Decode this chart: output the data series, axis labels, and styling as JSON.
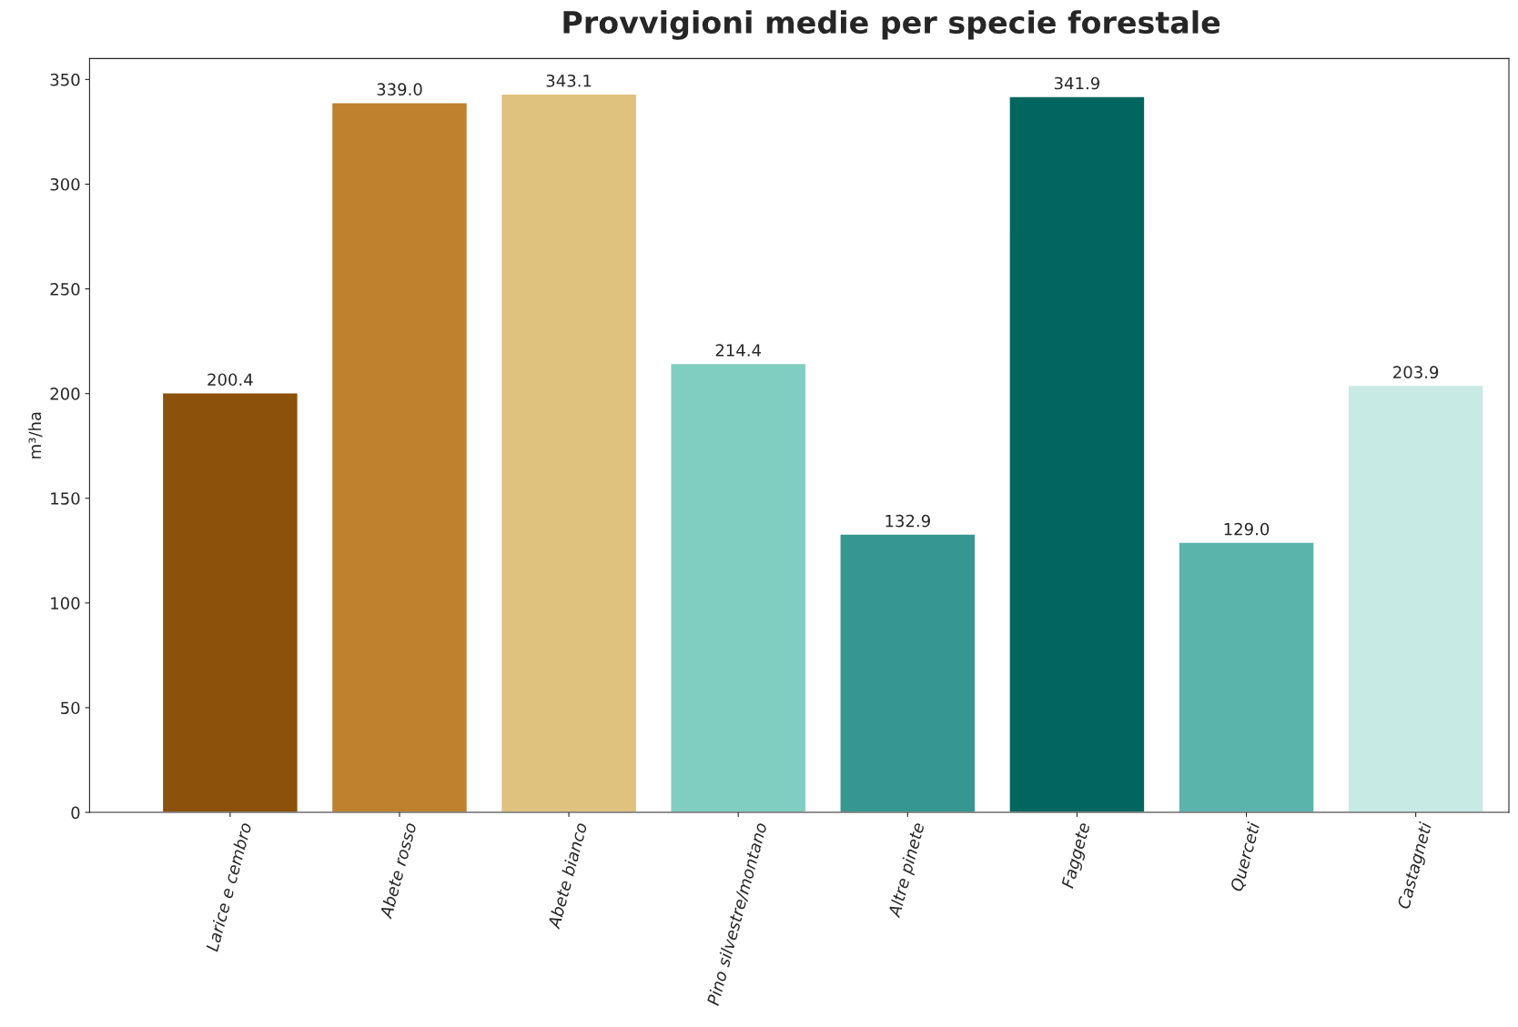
{
  "chart_data": {
    "type": "bar",
    "title": "Provvigioni medie per specie forestale",
    "ylabel": "m³/ha",
    "categories": [
      "Larice e cembro",
      "Abete rosso",
      "Abete bianco",
      "Pino silvestre/montano",
      "Altre pinete",
      "Faggete",
      "Querceti",
      "Castagneti"
    ],
    "values": [
      200.4,
      339.0,
      343.1,
      214.4,
      132.9,
      341.9,
      129.0,
      203.9
    ],
    "colors": [
      "#8c510a",
      "#bf812d",
      "#dfc27d",
      "#80cdc1",
      "#35978f",
      "#01665e",
      "#5ab4ac",
      "#c7eae5"
    ],
    "value_labels": [
      "200.4",
      "339.0",
      "343.1",
      "214.4",
      "132.9",
      "341.9",
      "129.0",
      "203.9"
    ],
    "ylim": [
      0,
      360
    ],
    "yticks": [
      0,
      50,
      100,
      150,
      200,
      250,
      300,
      350
    ],
    "grid": false,
    "legend": false
  }
}
